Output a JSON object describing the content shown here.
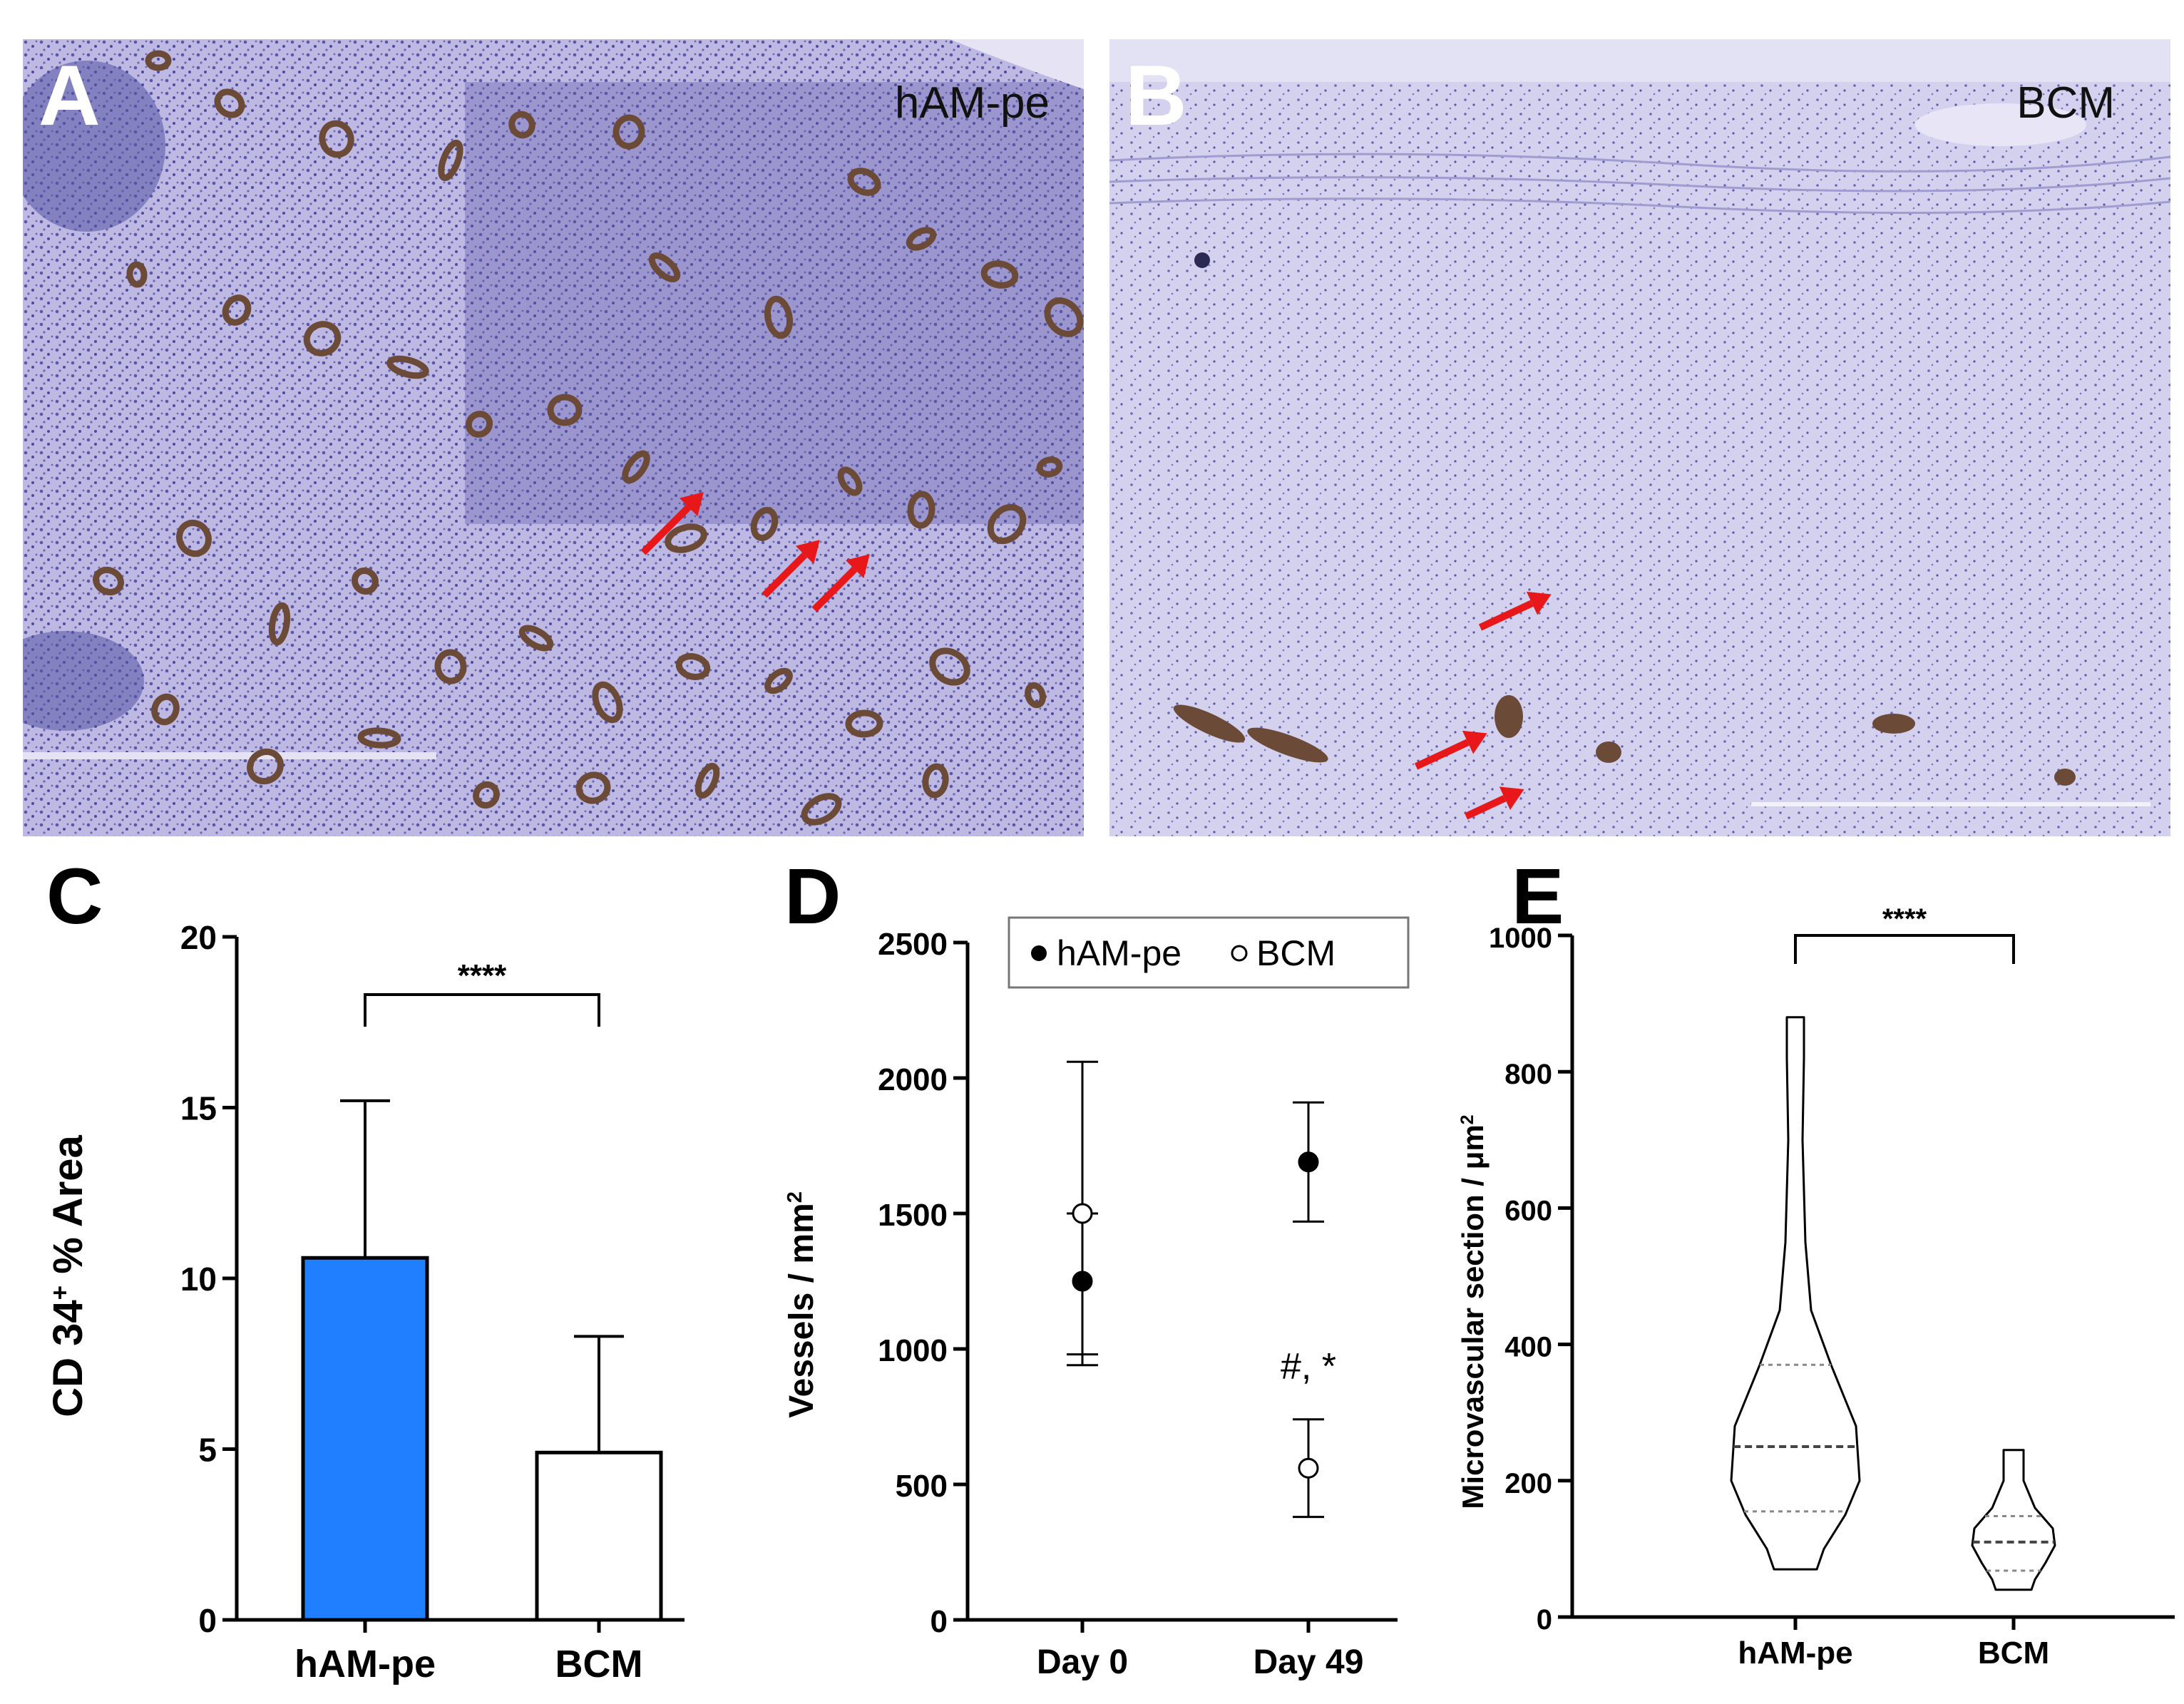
{
  "panels": {
    "A": {
      "letter": "A",
      "label": "hAM-pe"
    },
    "B": {
      "letter": "B",
      "label": "BCM"
    }
  },
  "colors": {
    "tissue_bg": "#c9c6e6",
    "nuclei": "#4b4aa0",
    "vessel_stain": "#7a5a4a",
    "arrow": "#e8181a",
    "bar_fill": "#1f7fff"
  },
  "chart_data": [
    {
      "panel": "C",
      "type": "bar",
      "categories": [
        "hAM-pe",
        "BCM"
      ],
      "values": [
        10.6,
        4.9
      ],
      "error_upper": [
        15.2,
        8.3
      ],
      "ylabel_main": "CD 34",
      "ylabel_sup": "+",
      "ylabel_rest": " % Area",
      "ylim": [
        0,
        20
      ],
      "yticks": [
        "0",
        "5",
        "10",
        "15",
        "20"
      ],
      "significance": "****"
    },
    {
      "panel": "D",
      "type": "scatter",
      "categories": [
        "Day 0",
        "Day 49"
      ],
      "series": [
        {
          "name": "hAM-pe",
          "marker": "filled",
          "values": [
            1250,
            1690
          ],
          "err_low": [
            940,
            1470
          ],
          "err_high": [
            2060,
            1910
          ]
        },
        {
          "name": "BCM",
          "marker": "open",
          "values": [
            1500,
            560
          ],
          "err_low": [
            980,
            380
          ],
          "err_high": [
            1500,
            740
          ]
        }
      ],
      "ylabel_main": "Vessels / mm",
      "ylabel_sup": "2",
      "ylim": [
        0,
        2500
      ],
      "yticks": [
        "0",
        "500",
        "1000",
        "1500",
        "2000",
        "2500"
      ],
      "annotation": "#, *",
      "legend_placement": "top"
    },
    {
      "panel": "E",
      "type": "violin",
      "categories": [
        "hAM-pe",
        "BCM"
      ],
      "violins": [
        {
          "min": 70,
          "max": 880,
          "q1": 155,
          "median": 250,
          "q3": 370
        },
        {
          "min": 40,
          "max": 245,
          "q1": 68,
          "median": 110,
          "q3": 148
        }
      ],
      "ylabel_main": "Microvascular section / μm",
      "ylabel_sup": "2",
      "ylim": [
        0,
        1000
      ],
      "yticks": [
        "0",
        "200",
        "400",
        "600",
        "800",
        "1000"
      ],
      "significance": "****"
    }
  ]
}
